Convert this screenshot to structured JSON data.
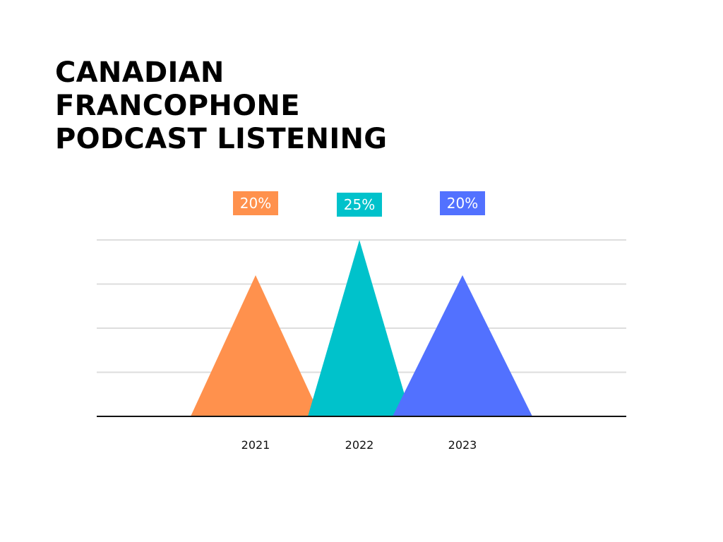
{
  "chart_data": {
    "type": "area",
    "title": "CANADIAN FRANCOPHONE PODCAST LISTENING",
    "title_lines": [
      "CANADIAN",
      "FRANCOPHONE",
      "PODCAST LISTENING"
    ],
    "categories": [
      "2021",
      "2022",
      "2023"
    ],
    "values": [
      20,
      25,
      20
    ],
    "value_labels": [
      "20%",
      "25%",
      "20%"
    ],
    "colors": [
      "#FF914D",
      "#00C2CB",
      "#5271FF"
    ],
    "ylim": [
      0,
      25
    ],
    "gridlines": 4,
    "grid": true,
    "xlabel": "",
    "ylabel": "",
    "legend": "none"
  }
}
